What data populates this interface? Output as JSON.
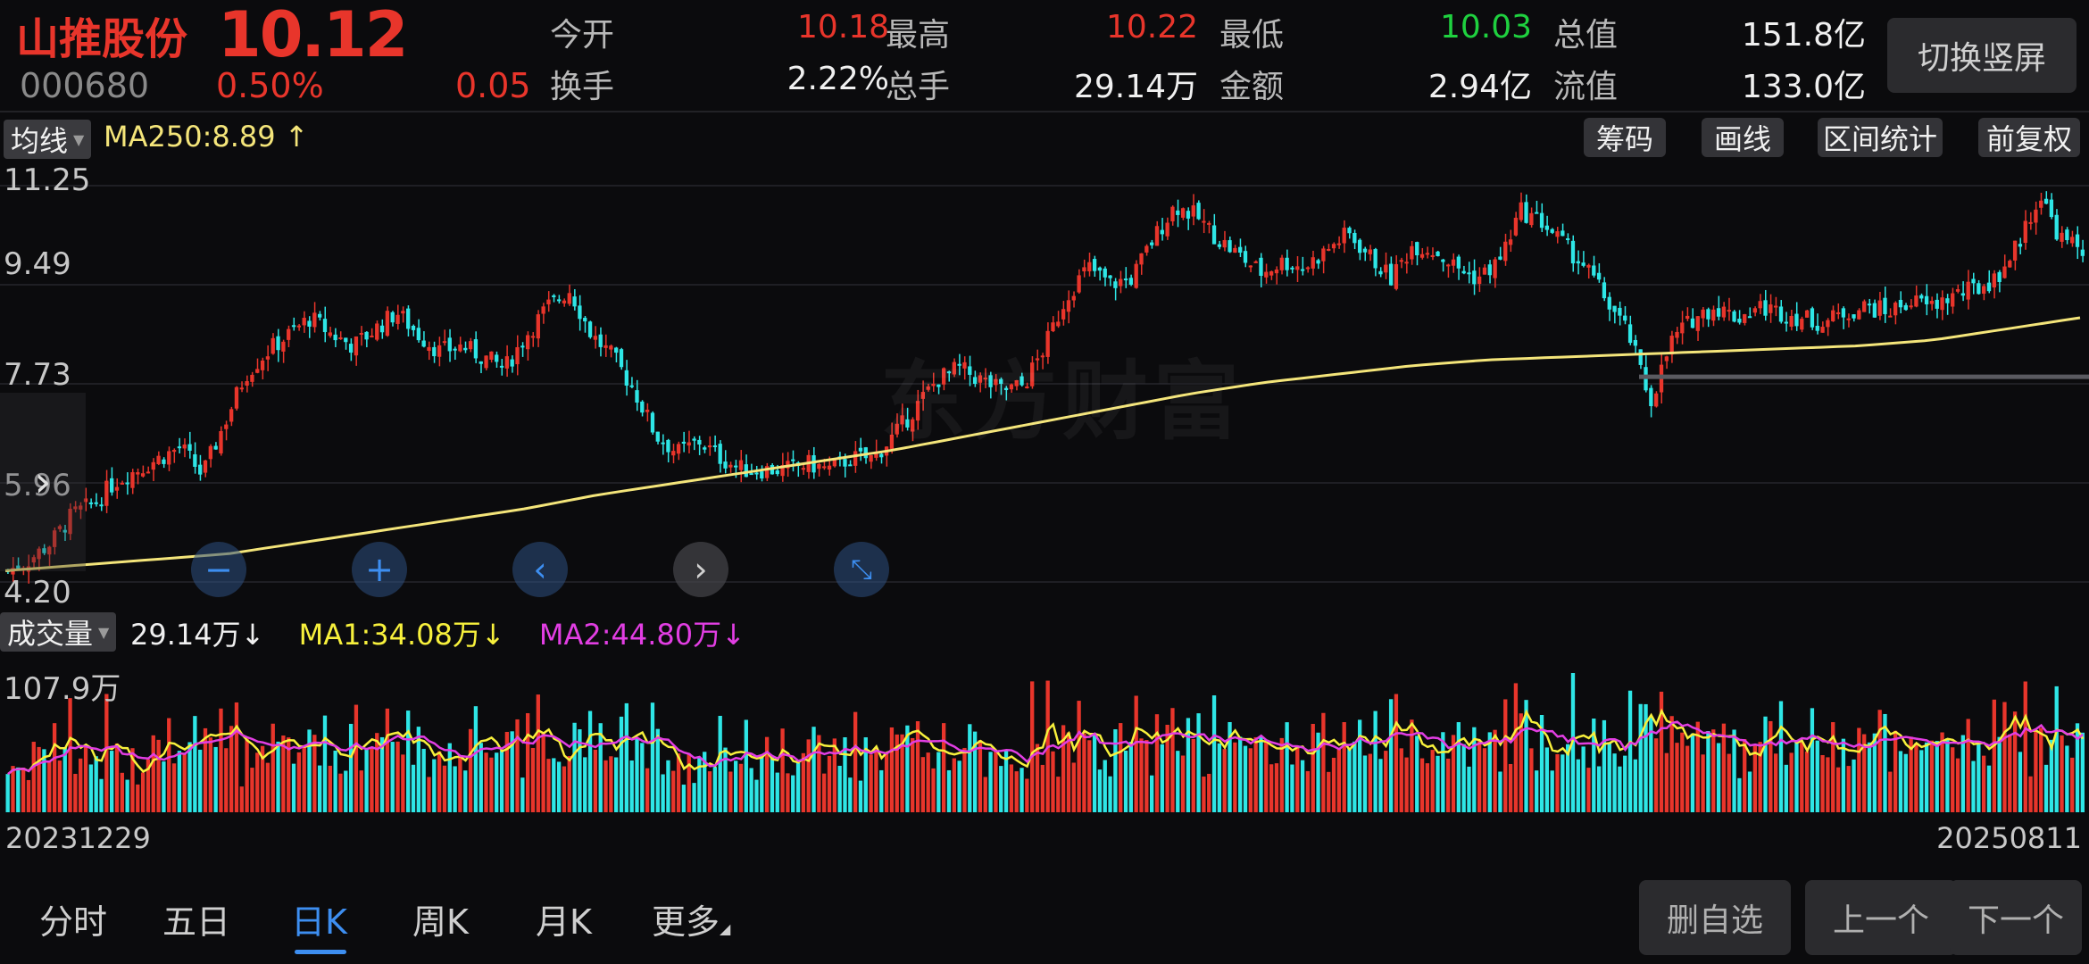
{
  "header": {
    "name": "山推股份",
    "price": "10.12",
    "code": "000680",
    "change_pct": "0.50%",
    "change_abs": "0.05",
    "quotes": [
      {
        "label": "今开",
        "value": "10.18",
        "color": "red"
      },
      {
        "label": "最高",
        "value": "10.22",
        "color": "red"
      },
      {
        "label": "最低",
        "value": "10.03",
        "color": "green"
      },
      {
        "label": "总值",
        "value": "151.8亿",
        "color": "white"
      },
      {
        "label": "换手",
        "value": "2.22%",
        "color": "white"
      },
      {
        "label": "总手",
        "value": "29.14万",
        "color": "white"
      },
      {
        "label": "金额",
        "value": "2.94亿",
        "color": "white"
      },
      {
        "label": "流值",
        "value": "133.0亿",
        "color": "white"
      }
    ],
    "switch_label": "切换竖屏"
  },
  "indicator": {
    "dropdown": "均线",
    "ma250": "MA250:8.89",
    "ma250_arrow": "↑",
    "tools": [
      "筹码",
      "画线",
      "区间统计",
      "前复权"
    ]
  },
  "price_axis": [
    "11.25",
    "9.49",
    "7.73",
    "5.96",
    "4.20"
  ],
  "volume": {
    "dropdown": "成交量",
    "vol": "29.14万",
    "vol_arrow": "↓",
    "ma1": "MA1:34.08万",
    "ma1_arrow": "↓",
    "ma2": "MA2:44.80万",
    "ma2_arrow": "↓",
    "axis_max": "107.9万"
  },
  "dates": {
    "start": "20231229",
    "end": "20250811"
  },
  "watermark": "东方财富",
  "tabs": [
    "分时",
    "五日",
    "日K",
    "周K",
    "月K",
    "更多"
  ],
  "active_tab": 2,
  "bottom_buttons": [
    "删自选",
    "上一个",
    "下一个"
  ],
  "colors": {
    "up": "#e8352b",
    "down": "#2ee6e6",
    "ma250": "#f4e57a",
    "ma1": "#f7f03c",
    "ma2": "#e23ee3",
    "accent": "#3d8ef0"
  },
  "chart_data": {
    "type": "candlestick",
    "price_range": [
      4.2,
      11.25
    ],
    "volume_max_wan": 107.9,
    "x_range": [
      "20231229",
      "20250811"
    ],
    "close_trend": [
      4.4,
      4.6,
      4.9,
      5.4,
      5.6,
      6.0,
      6.2,
      6.4,
      6.6,
      6.1,
      7.0,
      7.9,
      8.3,
      8.6,
      8.9,
      8.6,
      8.4,
      8.7,
      9.0,
      8.6,
      8.3,
      8.4,
      8.2,
      8.0,
      8.6,
      9.1,
      9.4,
      8.6,
      8.2,
      7.6,
      6.8,
      6.5,
      6.7,
      6.4,
      6.2,
      6.2,
      6.2,
      6.3,
      6.2,
      6.4,
      6.4,
      6.8,
      7.3,
      7.8,
      8.0,
      7.8,
      7.6,
      7.7,
      8.4,
      9.3,
      9.8,
      9.5,
      9.6,
      10.3,
      10.9,
      10.7,
      10.3,
      10.0,
      9.7,
      9.9,
      9.8,
      10.1,
      10.4,
      10.0,
      9.6,
      10.2,
      10.1,
      9.8,
      9.6,
      9.9,
      10.8,
      10.6,
      10.2,
      9.8,
      9.2,
      8.6,
      7.4,
      8.5,
      8.9,
      9.1,
      8.9,
      9.1,
      9.0,
      8.9,
      8.8,
      9.0,
      9.1,
      9.0,
      9.2,
      9.1,
      9.3,
      9.4,
      9.6,
      10.2,
      11.1,
      10.3,
      10.1
    ],
    "ma250_trend": [
      4.4,
      4.5,
      4.6,
      4.7,
      4.9,
      5.1,
      5.3,
      5.5,
      5.75,
      5.95,
      6.15,
      6.35,
      6.55,
      6.8,
      7.05,
      7.3,
      7.55,
      7.75,
      7.9,
      8.05,
      8.15,
      8.2,
      8.25,
      8.3,
      8.35,
      8.4,
      8.5,
      8.7,
      8.9
    ]
  }
}
